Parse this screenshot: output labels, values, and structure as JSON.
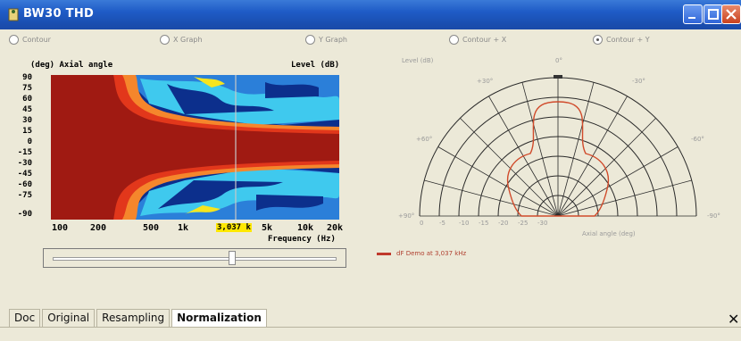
{
  "window": {
    "title": "BW30 THD",
    "icon": "app-icon",
    "controls": [
      "minimize-icon",
      "maximize-icon",
      "close-icon"
    ]
  },
  "view_options": [
    {
      "label": "Contour",
      "selected": false
    },
    {
      "label": "X Graph",
      "selected": false
    },
    {
      "label": "Y Graph",
      "selected": false
    },
    {
      "label": "Contour + X",
      "selected": false
    },
    {
      "label": "Contour + Y",
      "selected": true
    }
  ],
  "contour_plot": {
    "ylabel": "(deg) Axial angle",
    "level_label": "Level (dB)",
    "yticks": [
      "90",
      "75",
      "60",
      "45",
      "30",
      "15",
      "0",
      "-15",
      "-30",
      "-45",
      "-60",
      "-75",
      "-90"
    ],
    "xticks": [
      "100",
      "200",
      "500",
      "1k",
      "5k",
      "10k",
      "20k"
    ],
    "xlabel": "Frequency (Hz)",
    "marker_label": "3,037 k",
    "colors": {
      "high": "#a01a12",
      "red2": "#e2371b",
      "orange": "#f5862c",
      "yellow": "#f5e51e",
      "cyan": "#3fc9ee",
      "blue": "#2b7fd9",
      "navy": "#0c2f8c"
    }
  },
  "slider": {
    "position_fraction": 0.64
  },
  "polar_plot": {
    "level_label": "Level (dB)",
    "angle_labels": {
      "top": "0°",
      "left30": "+30°",
      "right30": "-30°",
      "left60": "+60°",
      "right60": "-60°",
      "left90": "+90°",
      "right90": "-90°"
    },
    "radial_ticks": [
      "0",
      "-5",
      "-10",
      "-15",
      "-20",
      "-25",
      "-30"
    ],
    "axis_label": "Axial angle (deg)",
    "curve_color": "#d04a2a"
  },
  "legend": {
    "text": "dF Demo at 3,037 kHz",
    "color": "#c0392b"
  },
  "tabs": [
    {
      "label": "Doc",
      "active": false
    },
    {
      "label": "Original",
      "active": false
    },
    {
      "label": "Resampling",
      "active": false
    },
    {
      "label": "Normalization",
      "active": true
    }
  ],
  "close_glyph": "✕"
}
